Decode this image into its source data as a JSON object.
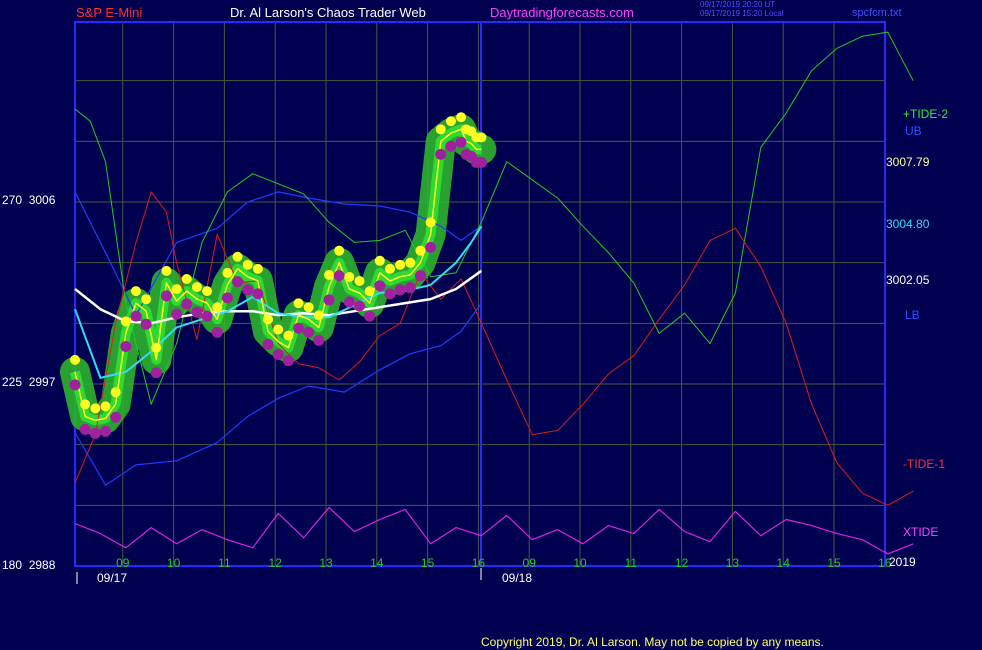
{
  "header": {
    "symbol": "S&P E-Mini",
    "title": "Dr. Al Larson's Chaos Trader Web",
    "site": "Daytradingforecasts.com",
    "stamp_utc": "09/17/2019 20:20 UT",
    "stamp_local": "09/17/2019 15:20 Local",
    "file": "spcfcm.txt"
  },
  "left_axis": [
    {
      "label": "270  3006",
      "value": 3006
    },
    {
      "label": "225  2997",
      "value": 2997
    },
    {
      "label": "180  2988",
      "value": 2988
    }
  ],
  "right_labels": {
    "tide2": "+TIDE-2",
    "ub": "UB",
    "p1": "3007.79",
    "p2": "3004.80",
    "p3": "3002.05",
    "lb": "LB",
    "tide1": "-TIDE-1",
    "xtide": "XTIDE"
  },
  "dates": {
    "d1": "09/17",
    "d2": "09/18",
    "year": "2019"
  },
  "copyright": "Copyright 2019, Dr. Al Larson. May not be copied by any means.",
  "colors": {
    "background": "#000050",
    "frame": "#2828ff",
    "grid": "#4a5a3a",
    "tide2": "#22cc22",
    "tide1": "#dd1a1a",
    "xtide": "#dd22dd",
    "bands": "#1e3cff",
    "cyan": "#33ddee",
    "white_avg": "#ffffff",
    "yellow": "#ffff22",
    "magenta_dot": "#a020a0",
    "green_glow": "#2eb32e"
  },
  "chart_data": {
    "type": "line",
    "title": "S&P E-Mini",
    "xlabel": "",
    "ylabel": "",
    "ylim": [
      2988,
      3015
    ],
    "x_ticks": [
      "09",
      "10",
      "11",
      "12",
      "13",
      "14",
      "15",
      "16",
      "09",
      "10",
      "11",
      "12",
      "13",
      "14",
      "15",
      "16"
    ],
    "price_labels": [
      3007.79,
      3004.8,
      3002.05
    ],
    "grid": true,
    "series": [
      {
        "name": "+TIDE-2",
        "x": [
          0,
          0.3,
          0.6,
          1,
          1.5,
          2,
          2.5,
          3,
          3.5,
          4,
          4.5,
          5,
          5.5,
          6,
          6.5,
          7,
          7.5,
          8,
          8.5,
          9,
          9.5,
          10,
          10.5,
          11,
          11.5,
          12,
          12.5,
          13,
          13.5,
          14,
          14.5,
          15,
          15.5,
          16,
          16.5
        ],
        "values": [
          3010.6,
          3010,
          3008,
          3001,
          2996,
          2999,
          3004,
          3006.5,
          3007.4,
          3006.9,
          3006.4,
          3005,
          3004,
          3004.1,
          3004.6,
          3002.3,
          3002.5,
          3005,
          3008,
          3007.1,
          3006.2,
          3004.8,
          3003.5,
          3002,
          2999.5,
          3000.5,
          2999,
          3001.5,
          3008.7,
          3010.4,
          3012.5,
          3013.6,
          3014.2,
          3014.4,
          3012
        ]
      },
      {
        "name": "-TIDE-1",
        "x": [
          0,
          0.4,
          0.8,
          1.2,
          1.5,
          1.8,
          2,
          2.4,
          2.8,
          3.2,
          3.6,
          4,
          4.4,
          4.8,
          5.2,
          5.6,
          6,
          6.4,
          6.8,
          7.2,
          7.6,
          8,
          8.5,
          9,
          9.5,
          10,
          10.5,
          11,
          11.5,
          12,
          12.5,
          13,
          13.5,
          14,
          14.5,
          15,
          15.5,
          16,
          16.5
        ],
        "values": [
          2992.1,
          2994.5,
          3000,
          3004,
          3006.5,
          3005.5,
          3003,
          2999.2,
          3004.4,
          3002,
          3002.1,
          2999,
          2998,
          2997.8,
          2997.2,
          2998.1,
          2999.4,
          3000,
          3002.5,
          3001.2,
          3002.2,
          3000,
          2997.2,
          2994.5,
          2994.7,
          2996,
          2997.5,
          2998.4,
          3000.2,
          3001.9,
          3004.1,
          3004.7,
          3002.8,
          3000,
          2996,
          2993.1,
          2991.6,
          2991,
          2991.7
        ]
      },
      {
        "name": "XTIDE",
        "x": [
          0,
          0.5,
          1,
          1.5,
          2,
          2.5,
          3,
          3.5,
          4,
          4.5,
          5,
          5.5,
          6,
          6.5,
          7,
          7.5,
          8,
          8.5,
          9,
          9.5,
          10,
          10.5,
          11,
          11.5,
          12,
          12.5,
          13,
          13.5,
          14,
          14.5,
          15,
          15.5,
          16,
          16.5
        ],
        "values": [
          2990.1,
          2989.6,
          2988.9,
          2989.9,
          2989.1,
          2989.8,
          2989.3,
          2988.9,
          2990.6,
          2989.4,
          2990.9,
          2989.7,
          2990.3,
          2990.8,
          2989.1,
          2989.9,
          2989.5,
          2990.5,
          2989.3,
          2989.8,
          2989.1,
          2990.0,
          2989.6,
          2990.8,
          2989.7,
          2989.2,
          2990.7,
          2989.5,
          2990.3,
          2990.0,
          2989.6,
          2989.3,
          2988.6,
          2989.1
        ]
      },
      {
        "name": "UB",
        "x": [
          0,
          0.6,
          1.2,
          2,
          2.8,
          3.4,
          4,
          4.6,
          5.3,
          6,
          6.6,
          7.2,
          7.6,
          8
        ],
        "values": [
          3006.5,
          3003.5,
          3000.4,
          3004,
          3004.7,
          3006,
          3006.5,
          3006.2,
          3005.9,
          3005.8,
          3005.5,
          3004.8,
          3004.1,
          3004.8
        ]
      },
      {
        "name": "LB",
        "x": [
          0,
          0.6,
          1.2,
          2,
          2.8,
          3.4,
          4,
          4.6,
          5.3,
          6,
          6.6,
          7.2,
          7.6,
          8
        ],
        "values": [
          2994.6,
          2992,
          2993,
          2993.2,
          2994.1,
          2995.4,
          2996.3,
          2996.9,
          2996.6,
          2997.7,
          2998.5,
          2998.9,
          2999.6,
          3001
        ]
      },
      {
        "name": "Close",
        "x": [
          0,
          0.2,
          0.4,
          0.6,
          0.8,
          1,
          1.2,
          1.4,
          1.6,
          1.8,
          2,
          2.2,
          2.4,
          2.6,
          2.8,
          3,
          3.2,
          3.4,
          3.6,
          3.8,
          4,
          4.2,
          4.4,
          4.6,
          4.8,
          5,
          5.2,
          5.4,
          5.6,
          5.8,
          6,
          6.2,
          6.4,
          6.6,
          6.8,
          7,
          7.2,
          7.4,
          7.6,
          7.7,
          7.8,
          7.9,
          8
        ],
        "values": [
          2997.6,
          2995.4,
          2995.2,
          2995.3,
          2996,
          2999.5,
          3001,
          3000.6,
          2998.2,
          3002,
          3001.1,
          3001.6,
          3001.2,
          3001,
          3000.2,
          3001.9,
          3002.7,
          3002.3,
          3002.1,
          2999.6,
          2999.1,
          2998.8,
          3000.4,
          3000.2,
          2999.8,
          3001.8,
          3003,
          3001.7,
          3001.5,
          3001,
          3002.5,
          3002.1,
          3002.3,
          3002.4,
          3003,
          3004.4,
          3009,
          3009.4,
          3009.6,
          3009,
          3008.9,
          3008.6,
          3008.6
        ]
      },
      {
        "name": "Cyan average",
        "x": [
          0,
          0.5,
          1,
          1.5,
          2,
          2.5,
          3,
          3.5,
          4,
          4.5,
          5,
          5.5,
          6,
          6.5,
          7,
          7.5,
          7.8,
          8
        ],
        "values": [
          3000.7,
          2997.3,
          2997.6,
          2998.6,
          2999.8,
          3000.2,
          3000.6,
          3001.3,
          3000.5,
          3000.3,
          3000.3,
          3000.9,
          3001.5,
          3001.6,
          3001.9,
          3003,
          3004,
          3004.8
        ]
      },
      {
        "name": "White average",
        "x": [
          0,
          0.5,
          1,
          1.5,
          2,
          2.5,
          3,
          3.5,
          4,
          4.5,
          5,
          5.5,
          6,
          6.5,
          7,
          7.5,
          8
        ],
        "values": [
          3001.7,
          3000.7,
          3000.1,
          3000,
          3000.3,
          3000.5,
          3000.6,
          3000.6,
          3000.4,
          3000.5,
          3000.4,
          3000.6,
          3000.8,
          3001,
          3001.2,
          3001.7,
          3002.6
        ]
      }
    ]
  }
}
